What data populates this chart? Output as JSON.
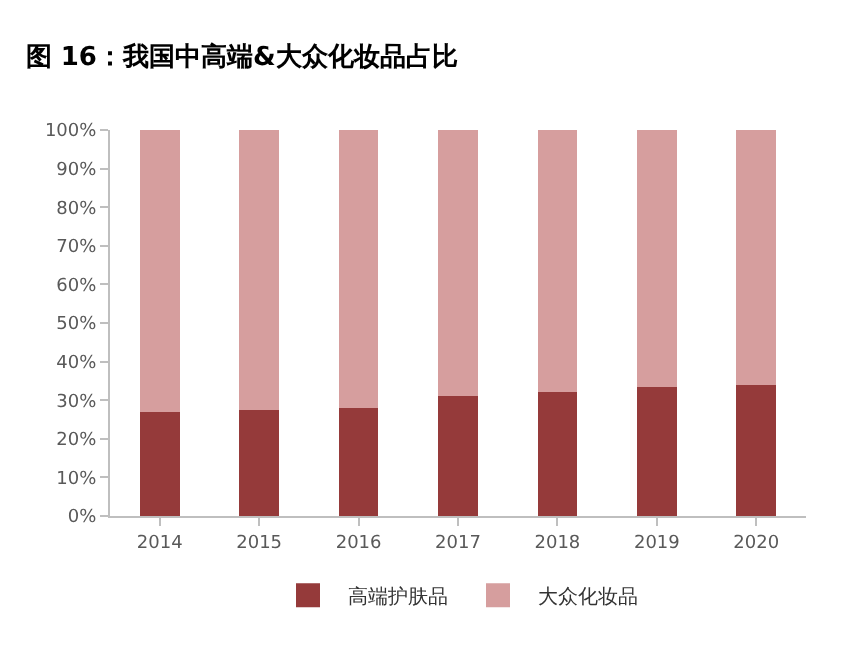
{
  "chart_data": {
    "type": "bar",
    "title": "图 16：我国中高端&大众化妆品占比",
    "stacked": true,
    "categories": [
      "2014",
      "2015",
      "2016",
      "2017",
      "2018",
      "2019",
      "2020"
    ],
    "series": [
      {
        "name": "高端护肤品",
        "color": "#953a3a",
        "values": [
          27,
          27.5,
          28,
          31,
          32,
          33.5,
          34
        ]
      },
      {
        "name": "大众化妆品",
        "color": "#d69e9e",
        "values": [
          73,
          72.5,
          72,
          69,
          68,
          66.5,
          66
        ]
      }
    ],
    "ylim": [
      0,
      100
    ],
    "yticks": [
      {
        "value": 0,
        "label": "0%"
      },
      {
        "value": 10,
        "label": "10%"
      },
      {
        "value": 20,
        "label": "20%"
      },
      {
        "value": 30,
        "label": "30%"
      },
      {
        "value": 40,
        "label": "40%"
      },
      {
        "value": 50,
        "label": "50%"
      },
      {
        "value": 60,
        "label": "60%"
      },
      {
        "value": 70,
        "label": "70%"
      },
      {
        "value": 80,
        "label": "80%"
      },
      {
        "value": 90,
        "label": "90%"
      },
      {
        "value": 100,
        "label": "100%"
      }
    ],
    "grid": false,
    "legend": "bottom"
  }
}
